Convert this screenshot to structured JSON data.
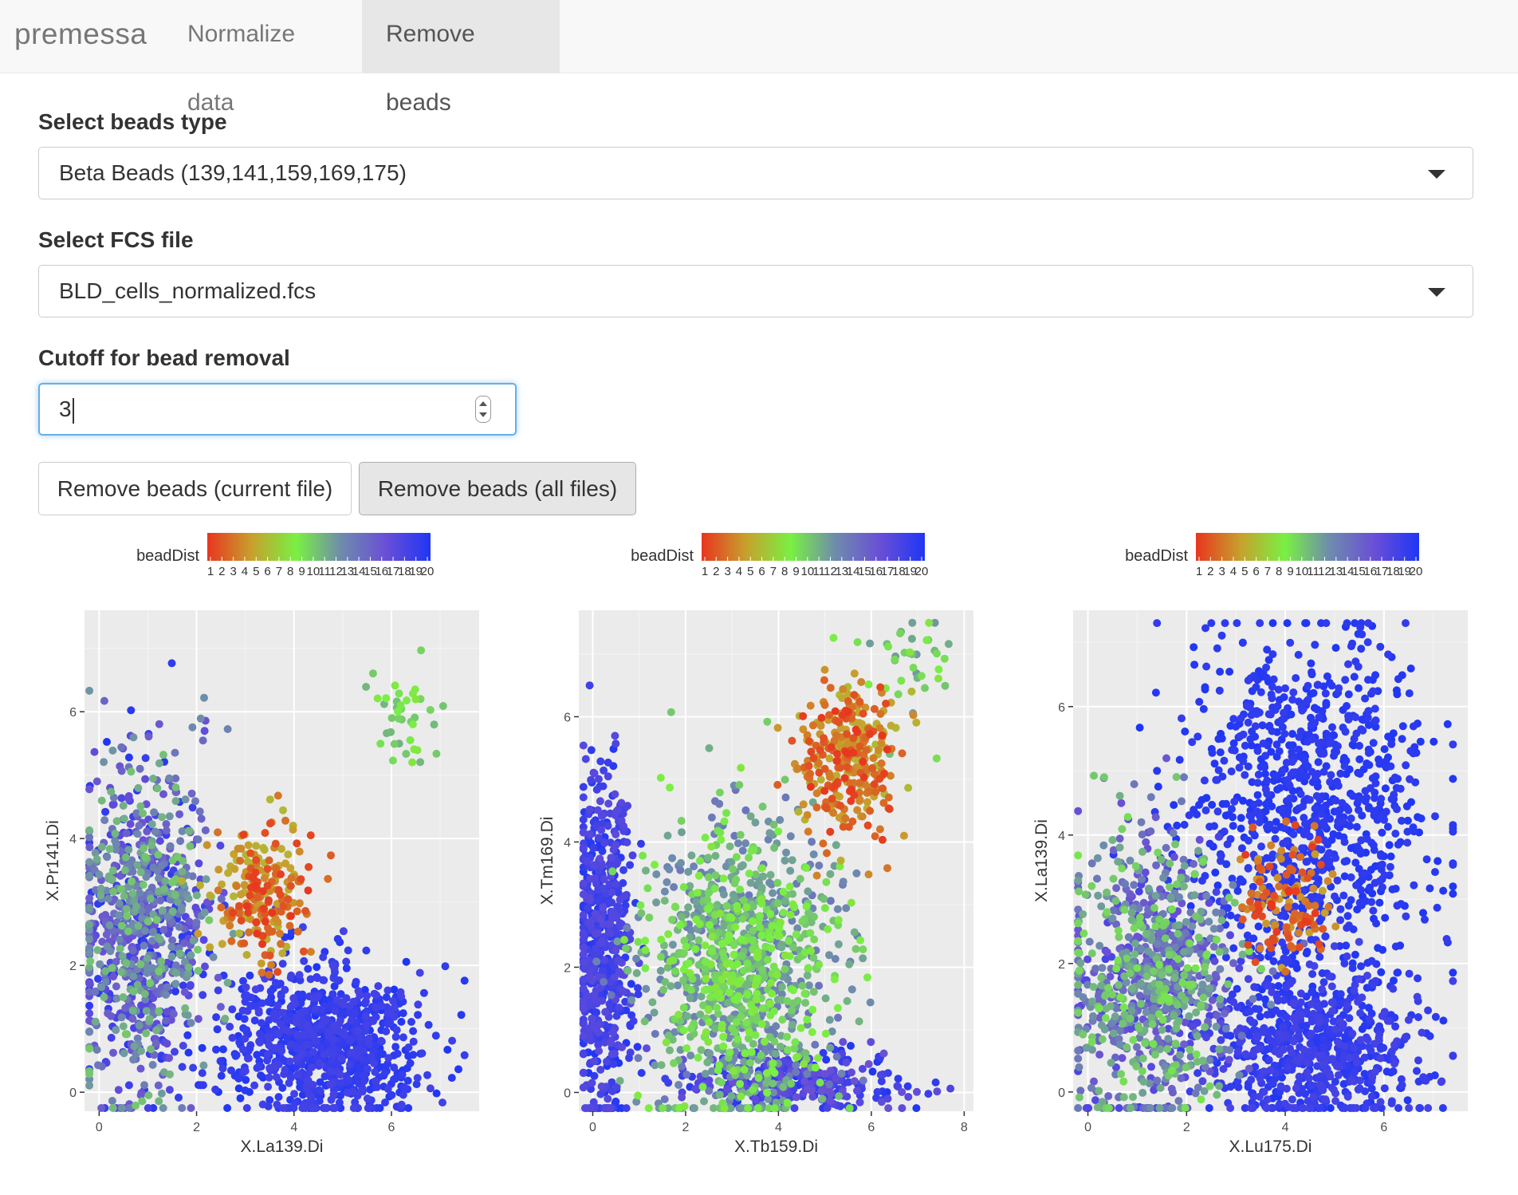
{
  "navbar": {
    "brand": "premessa",
    "tabs": [
      {
        "label": "Normalize data",
        "active": false
      },
      {
        "label": "Remove beads",
        "active": true
      }
    ]
  },
  "form": {
    "beads_type": {
      "label": "Select beads type",
      "value": "Beta Beads (139,141,159,169,175)"
    },
    "fcs_file": {
      "label": "Select FCS file",
      "value": "BLD_cells_normalized.fcs"
    },
    "cutoff": {
      "label": "Cutoff for bead removal",
      "value": "3"
    },
    "buttons": {
      "current": "Remove beads (current file)",
      "all": "Remove beads (all files)"
    }
  },
  "colors": {
    "scale": [
      "#e8351f",
      "#c7a12d",
      "#79f043",
      "#6e8bad",
      "#6a4fd6",
      "#1f36f5"
    ],
    "panel": "#ebebeb"
  },
  "chart_data": [
    {
      "type": "scatter",
      "title": "",
      "xlabel": "X.La139.Di",
      "ylabel": "X.Pr141.Di",
      "xlim": [
        -0.3,
        7.8
      ],
      "ylim": [
        -0.3,
        7.6
      ],
      "xticks": [
        0,
        2,
        4,
        6
      ],
      "yticks": [
        0,
        2,
        4,
        6
      ],
      "legend": {
        "title": "beadDist",
        "range": [
          1,
          20
        ],
        "ticks": [
          "1",
          "2",
          "3",
          "4",
          "5",
          "6",
          "7",
          "8",
          "9",
          "10",
          "11",
          "12",
          "13",
          "14",
          "15",
          "16",
          "17",
          "18",
          "19",
          "20"
        ],
        "position": "top"
      },
      "clusters": [
        {
          "name": "mass",
          "cx": 4.6,
          "cy": 0.8,
          "sx": 1.0,
          "sy": 0.6,
          "n": 900,
          "color": [
            18,
            20
          ]
        },
        {
          "name": "left",
          "cx": 0.9,
          "cy": 2.6,
          "sx": 0.7,
          "sy": 1.3,
          "n": 900,
          "color": [
            10,
            20
          ]
        },
        {
          "name": "diag",
          "cx": 3.3,
          "cy": 3.1,
          "sx": 0.5,
          "sy": 0.5,
          "n": 220,
          "color": [
            1,
            6
          ]
        },
        {
          "name": "tail",
          "cx": 6.3,
          "cy": 5.9,
          "sx": 0.5,
          "sy": 0.5,
          "n": 40,
          "color": [
            8,
            11
          ]
        }
      ]
    },
    {
      "type": "scatter",
      "title": "",
      "xlabel": "X.Tb159.Di",
      "ylabel": "X.Tm169.Di",
      "xlim": [
        -0.3,
        8.2
      ],
      "ylim": [
        -0.3,
        7.7
      ],
      "xticks": [
        0,
        2,
        4,
        6,
        8
      ],
      "yticks": [
        0,
        2,
        4,
        6
      ],
      "legend": {
        "title": "beadDist",
        "range": [
          1,
          20
        ],
        "ticks": [
          "1",
          "2",
          "3",
          "4",
          "5",
          "6",
          "7",
          "8",
          "9",
          "10",
          "11",
          "12",
          "13",
          "14",
          "15",
          "16",
          "17",
          "18",
          "19",
          "20"
        ],
        "position": "top"
      },
      "clusters": [
        {
          "name": "leftband",
          "cx": 0.2,
          "cy": 2.3,
          "sx": 0.3,
          "sy": 1.4,
          "n": 600,
          "color": [
            17,
            20
          ]
        },
        {
          "name": "center",
          "cx": 3.2,
          "cy": 2.0,
          "sx": 1.0,
          "sy": 1.2,
          "n": 1100,
          "color": [
            8,
            14
          ]
        },
        {
          "name": "bottom",
          "cx": 4.4,
          "cy": 0.2,
          "sx": 1.3,
          "sy": 0.25,
          "n": 300,
          "color": [
            16,
            20
          ]
        },
        {
          "name": "beads",
          "cx": 5.5,
          "cy": 5.3,
          "sx": 0.5,
          "sy": 0.6,
          "n": 320,
          "color": [
            1,
            6
          ]
        },
        {
          "name": "tail",
          "cx": 6.9,
          "cy": 6.8,
          "sx": 0.5,
          "sy": 0.5,
          "n": 40,
          "color": [
            8,
            12
          ]
        }
      ]
    },
    {
      "type": "scatter",
      "title": "",
      "xlabel": "X.Lu175.Di",
      "ylabel": "X.La139.Di",
      "xlim": [
        -0.3,
        7.7
      ],
      "ylim": [
        -0.3,
        7.5
      ],
      "xticks": [
        0,
        2,
        4,
        6
      ],
      "yticks": [
        0,
        2,
        4,
        6
      ],
      "legend": {
        "title": "beadDist",
        "range": [
          1,
          20
        ],
        "ticks": [
          "1",
          "2",
          "3",
          "4",
          "5",
          "6",
          "7",
          "8",
          "9",
          "10",
          "11",
          "12",
          "13",
          "14",
          "15",
          "16",
          "17",
          "18",
          "19",
          "20"
        ],
        "position": "top"
      },
      "clusters": [
        {
          "name": "upper",
          "cx": 4.5,
          "cy": 4.3,
          "sx": 1.2,
          "sy": 1.4,
          "n": 1000,
          "color": [
            19,
            20
          ]
        },
        {
          "name": "lower",
          "cx": 4.6,
          "cy": 0.7,
          "sx": 1.1,
          "sy": 0.6,
          "n": 700,
          "color": [
            18,
            20
          ]
        },
        {
          "name": "left",
          "cx": 1.3,
          "cy": 1.8,
          "sx": 0.8,
          "sy": 1.1,
          "n": 900,
          "color": [
            9,
            18
          ]
        },
        {
          "name": "diag",
          "cx": 4.0,
          "cy": 3.0,
          "sx": 0.5,
          "sy": 0.5,
          "n": 120,
          "color": [
            1,
            5
          ]
        }
      ]
    }
  ]
}
